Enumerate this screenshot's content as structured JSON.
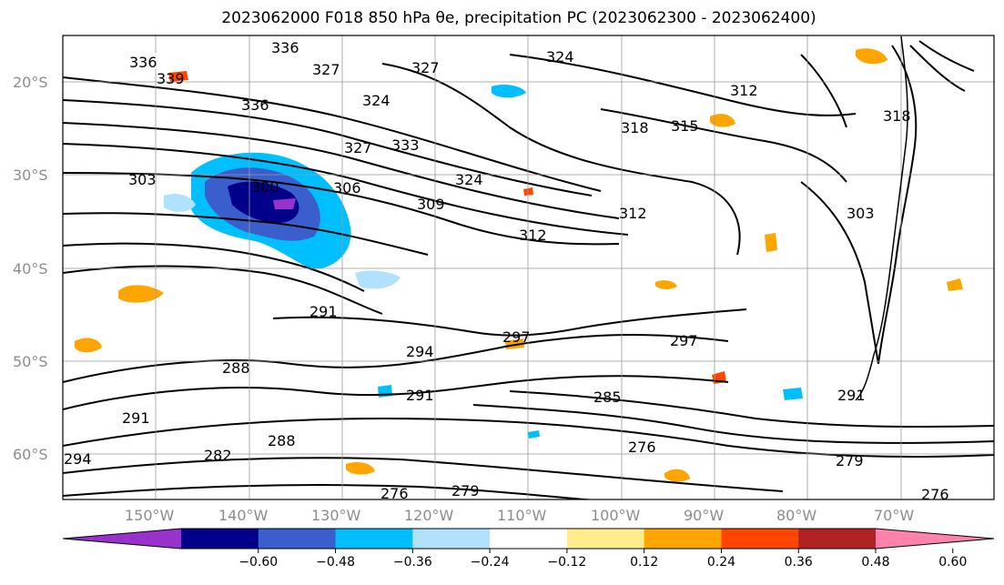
{
  "title": "2023062000 F018 850 hPa θe, precipitation PC (2023062300 - 2023062400)",
  "lat_labels": [
    "20°S",
    "30°S",
    "40°S",
    "50°S",
    "60°S"
  ],
  "lon_labels": [
    "150°W",
    "140°W",
    "130°W",
    "120°W",
    "110°W",
    "100°W",
    "90°W",
    "80°W",
    "70°W"
  ],
  "contour_labels": [
    "336",
    "339",
    "336",
    "327",
    "324",
    "327",
    "324",
    "336",
    "327",
    "333",
    "303",
    "300",
    "306",
    "309",
    "324",
    "312",
    "318",
    "315",
    "312",
    "312",
    "303",
    "318",
    "291",
    "294",
    "297",
    "297",
    "288",
    "291",
    "285",
    "291",
    "291",
    "288",
    "282",
    "276",
    "279",
    "294",
    "279",
    "276",
    "276"
  ],
  "colorbar": {
    "ticks": [
      "−0.60",
      "−0.48",
      "−0.36",
      "−0.24",
      "−0.12",
      "0.12",
      "0.24",
      "0.36",
      "0.48",
      "0.60"
    ],
    "colors": [
      "#9932cc",
      "#00008b",
      "#3a5fcd",
      "#00bfff",
      "#b0e2ff",
      "#ffffff",
      "#ffec8b",
      "#ffa500",
      "#ff4500",
      "#b22222",
      "#ff82ab"
    ]
  }
}
